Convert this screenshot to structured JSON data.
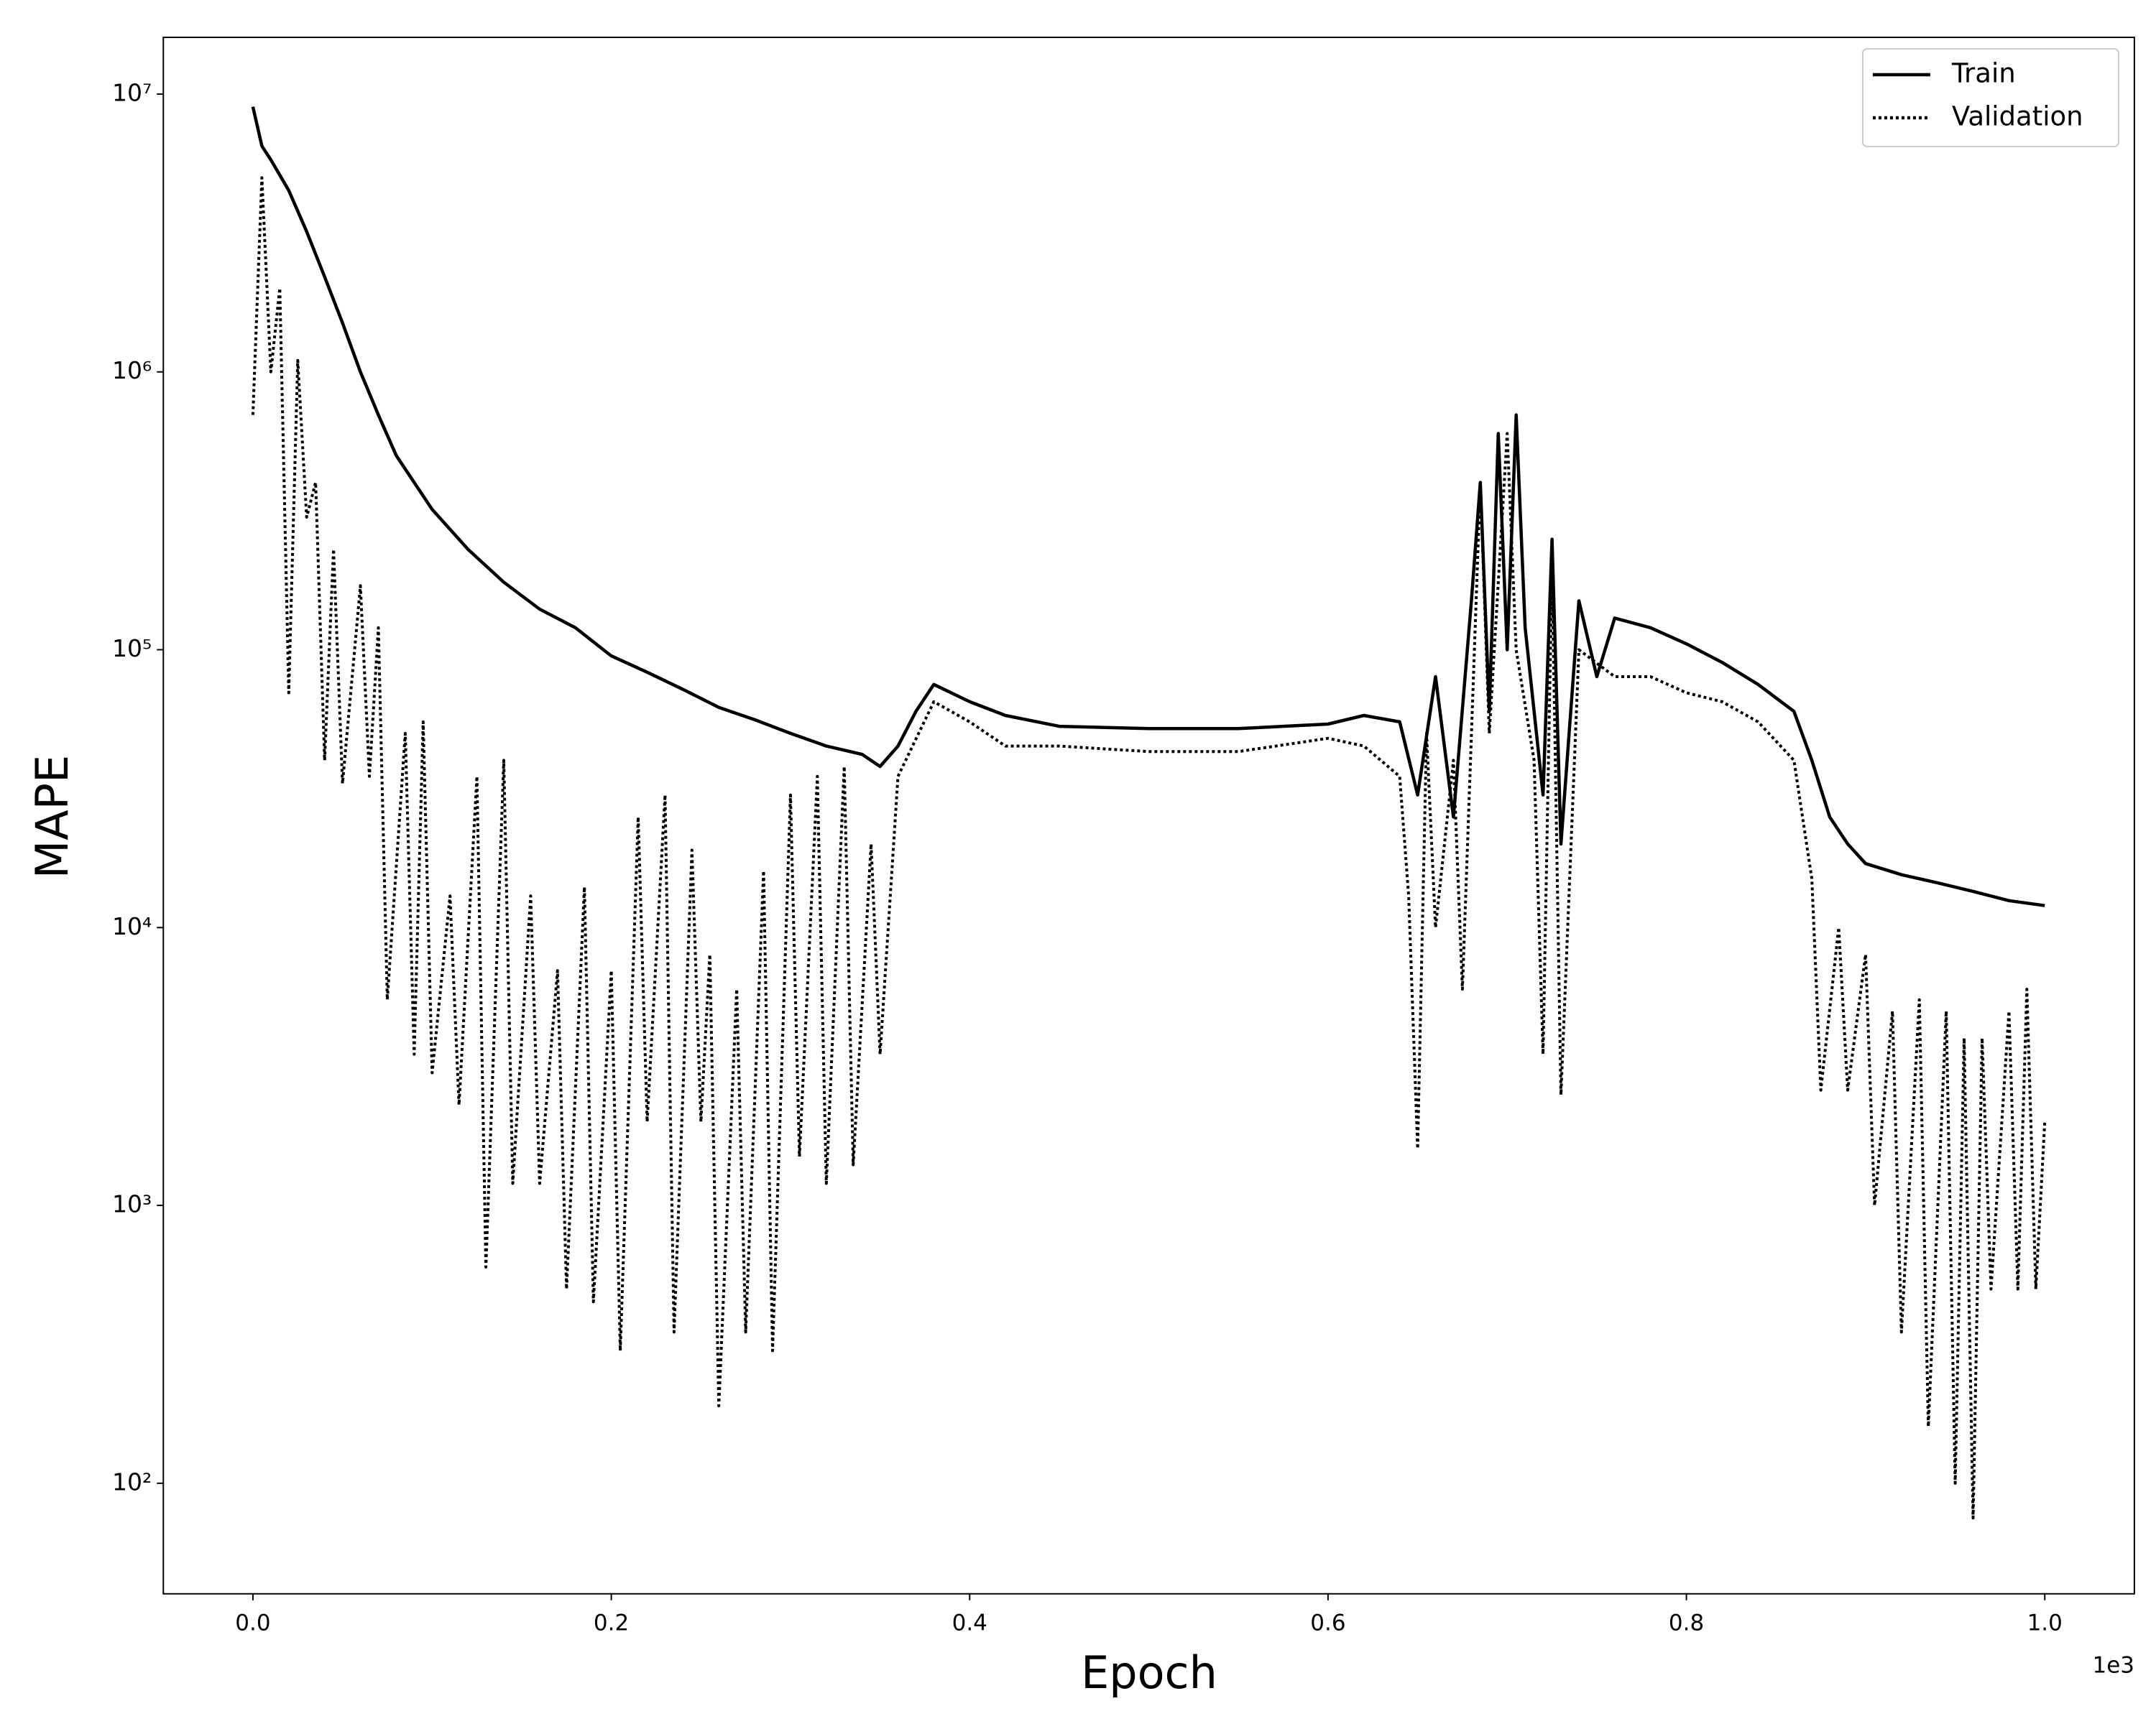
{
  "chart_data": {
    "type": "line",
    "xlabel": "Epoch",
    "ylabel": "MAPE",
    "x_offset_label": "1e3",
    "xlim": [
      -0.05,
      1.05
    ],
    "xticks": [
      {
        "value": 0,
        "label": "0.0"
      },
      0.2,
      0.4,
      0.6,
      0.8,
      {
        "value": 1,
        "label": "1.0"
      }
    ],
    "ylim": [
      40,
      16000000
    ],
    "log_y": true,
    "yticks": [
      {
        "value": 100,
        "label": "10²"
      },
      {
        "value": 1000,
        "label": "10³"
      },
      {
        "value": 10000,
        "label": "10⁴"
      },
      {
        "value": 100000,
        "label": "10⁵"
      },
      {
        "value": 1000000,
        "label": "10⁶"
      },
      {
        "value": 10000000,
        "label": "10⁷"
      }
    ],
    "legend": "upper right",
    "series": [
      {
        "name": "Train",
        "color": "#000000",
        "linestyle": "solid",
        "x": [
          0,
          0.005,
          0.01,
          0.02,
          0.03,
          0.04,
          0.05,
          0.06,
          0.07,
          0.08,
          0.1,
          0.12,
          0.14,
          0.16,
          0.18,
          0.2,
          0.22,
          0.24,
          0.26,
          0.28,
          0.3,
          0.32,
          0.34,
          0.35,
          0.36,
          0.37,
          0.38,
          0.4,
          0.42,
          0.45,
          0.5,
          0.55,
          0.6,
          0.62,
          0.64,
          0.65,
          0.66,
          0.67,
          0.68,
          0.685,
          0.69,
          0.695,
          0.7,
          0.705,
          0.71,
          0.72,
          0.725,
          0.73,
          0.74,
          0.75,
          0.76,
          0.78,
          0.8,
          0.82,
          0.84,
          0.86,
          0.87,
          0.88,
          0.89,
          0.9,
          0.92,
          0.94,
          0.96,
          0.98,
          1.0
        ],
        "values": [
          9000000,
          6500000,
          5800000,
          4500000,
          3200000,
          2200000,
          1500000,
          1000000,
          700000,
          500000,
          320000,
          230000,
          175000,
          140000,
          120000,
          95000,
          83000,
          72000,
          62000,
          56000,
          50000,
          45000,
          42000,
          38000,
          45000,
          60000,
          75000,
          65000,
          58000,
          53000,
          52000,
          52000,
          54000,
          58000,
          55000,
          30000,
          80000,
          25000,
          150000,
          400000,
          60000,
          600000,
          100000,
          700000,
          120000,
          30000,
          250000,
          20000,
          150000,
          80000,
          130000,
          120000,
          105000,
          90000,
          75000,
          60000,
          40000,
          25000,
          20000,
          17000,
          15500,
          14500,
          13500,
          12500,
          12000
        ]
      },
      {
        "name": "Validation",
        "color": "#000000",
        "linestyle": "dotted",
        "x": [
          0,
          0.005,
          0.01,
          0.015,
          0.02,
          0.025,
          0.03,
          0.035,
          0.04,
          0.045,
          0.05,
          0.06,
          0.065,
          0.07,
          0.075,
          0.085,
          0.09,
          0.095,
          0.1,
          0.11,
          0.115,
          0.125,
          0.13,
          0.14,
          0.145,
          0.155,
          0.16,
          0.17,
          0.175,
          0.185,
          0.19,
          0.2,
          0.205,
          0.215,
          0.22,
          0.23,
          0.235,
          0.245,
          0.25,
          0.255,
          0.26,
          0.27,
          0.275,
          0.285,
          0.29,
          0.3,
          0.305,
          0.315,
          0.32,
          0.33,
          0.335,
          0.345,
          0.35,
          0.36,
          0.38,
          0.4,
          0.42,
          0.45,
          0.5,
          0.55,
          0.6,
          0.62,
          0.64,
          0.645,
          0.65,
          0.655,
          0.66,
          0.67,
          0.675,
          0.685,
          0.69,
          0.7,
          0.705,
          0.715,
          0.72,
          0.725,
          0.73,
          0.74,
          0.76,
          0.78,
          0.8,
          0.82,
          0.84,
          0.86,
          0.87,
          0.875,
          0.885,
          0.89,
          0.9,
          0.905,
          0.915,
          0.92,
          0.93,
          0.935,
          0.945,
          0.95,
          0.955,
          0.96,
          0.965,
          0.97,
          0.98,
          0.985,
          0.99,
          0.995,
          1.0
        ],
        "values": [
          700000,
          5000000,
          1000000,
          2000000,
          70000,
          1100000,
          300000,
          400000,
          40000,
          230000,
          33000,
          170000,
          35000,
          120000,
          5500,
          50000,
          3500,
          55000,
          3000,
          13000,
          2300,
          35000,
          600,
          40000,
          1200,
          13000,
          1200,
          7000,
          500,
          14000,
          450,
          7000,
          300,
          25000,
          2000,
          30000,
          350,
          19000,
          2000,
          8000,
          190,
          6000,
          350,
          16000,
          300,
          30000,
          1500,
          35000,
          1200,
          38000,
          1400,
          20000,
          3500,
          35000,
          65000,
          55000,
          45000,
          45000,
          43000,
          43000,
          48000,
          45000,
          35000,
          13000,
          1600,
          50000,
          10000,
          40000,
          6000,
          400000,
          50000,
          600000,
          100000,
          40000,
          3500,
          200000,
          2500,
          100000,
          80000,
          80000,
          70000,
          65000,
          55000,
          40000,
          15000,
          2600,
          10000,
          2600,
          8000,
          1000,
          5000,
          350,
          5500,
          160,
          5000,
          100,
          4000,
          75,
          4000,
          500,
          5000,
          500,
          6000,
          500,
          2000
        ]
      }
    ]
  }
}
